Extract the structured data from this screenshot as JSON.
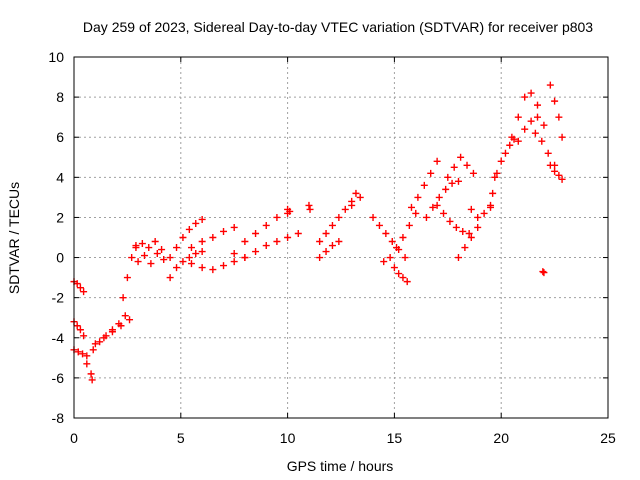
{
  "chart_data": {
    "type": "scatter",
    "title": "Day 259 of 2023, Sidereal Day-to-day VTEC variation (SDTVAR) for receiver p803",
    "xlabel": "GPS time / hours",
    "ylabel": "SDTVAR / TECUs",
    "xlim": [
      0,
      25
    ],
    "ylim": [
      -8,
      10
    ],
    "xticks": [
      0,
      5,
      10,
      15,
      20,
      25
    ],
    "yticks": [
      -8,
      -6,
      -4,
      -2,
      0,
      2,
      4,
      6,
      8,
      10
    ],
    "xtick_labels": [
      "0",
      "5",
      "10",
      "15",
      "20",
      "25"
    ],
    "ytick_labels": [
      "-8",
      "-6",
      "-4",
      "-2",
      "0",
      "2",
      "4",
      "6",
      "8",
      "10"
    ],
    "grid": true,
    "marker": "+",
    "color": "#ff0000",
    "series": [
      {
        "name": "s1",
        "x": [
          0.0,
          0.15,
          0.3,
          0.45
        ],
        "y": [
          -1.2,
          -1.3,
          -1.5,
          -1.7
        ]
      },
      {
        "name": "s2",
        "x": [
          0.0,
          0.15,
          0.3,
          0.45
        ],
        "y": [
          -3.2,
          -3.4,
          -3.6,
          -3.9
        ]
      },
      {
        "name": "s3",
        "x": [
          0.0,
          0.2,
          0.4,
          0.6
        ],
        "y": [
          -4.6,
          -4.7,
          -4.8,
          -4.9
        ]
      },
      {
        "name": "s4",
        "x": [
          0.6,
          0.9,
          1.2,
          1.5,
          1.8,
          2.1,
          2.4
        ],
        "y": [
          -5.3,
          -4.6,
          -4.2,
          -3.9,
          -3.6,
          -3.3,
          -2.9
        ]
      },
      {
        "name": "s5",
        "x": [
          0.8,
          0.85
        ],
        "y": [
          -5.8,
          -6.1
        ]
      },
      {
        "name": "s6",
        "x": [
          1.0,
          1.4,
          1.8,
          2.2,
          2.6
        ],
        "y": [
          -4.3,
          -4.0,
          -3.7,
          -3.4,
          -3.1
        ]
      },
      {
        "name": "s7",
        "x": [
          2.3,
          2.5,
          2.7,
          2.9
        ],
        "y": [
          -2.0,
          -1.0,
          0.0,
          0.5
        ]
      },
      {
        "name": "s8",
        "x": [
          2.9,
          3.2,
          3.5,
          3.8,
          4.1
        ],
        "y": [
          0.6,
          0.7,
          0.5,
          0.8,
          0.4
        ]
      },
      {
        "name": "s9",
        "x": [
          3.0,
          3.3,
          3.6,
          3.9,
          4.2
        ],
        "y": [
          -0.2,
          0.1,
          -0.3,
          0.2,
          -0.1
        ]
      },
      {
        "name": "s10",
        "x": [
          4.5,
          4.8,
          5.1,
          5.4,
          5.7,
          6.0
        ],
        "y": [
          0.0,
          0.5,
          1.0,
          1.4,
          1.7,
          1.9
        ]
      },
      {
        "name": "s11",
        "x": [
          4.5,
          4.8,
          5.1,
          5.4,
          5.7,
          6.0
        ],
        "y": [
          -1.0,
          -0.5,
          -0.2,
          0.0,
          0.2,
          0.3
        ]
      },
      {
        "name": "s12",
        "x": [
          5.5,
          6.0,
          6.5,
          7.0,
          7.5
        ],
        "y": [
          0.5,
          0.8,
          1.0,
          1.3,
          1.5
        ]
      },
      {
        "name": "s13",
        "x": [
          5.5,
          6.0,
          6.5,
          7.0,
          7.5,
          8.0
        ],
        "y": [
          -0.3,
          -0.5,
          -0.6,
          -0.4,
          -0.2,
          0.0
        ]
      },
      {
        "name": "s14",
        "x": [
          7.5,
          8.0,
          8.5,
          9.0,
          9.5,
          10.0
        ],
        "y": [
          0.2,
          0.8,
          1.2,
          1.6,
          2.0,
          2.2
        ]
      },
      {
        "name": "s15",
        "x": [
          8.0,
          8.5,
          9.0,
          9.5,
          10.0,
          10.5
        ],
        "y": [
          0.0,
          0.3,
          0.6,
          0.8,
          1.0,
          1.2
        ]
      },
      {
        "name": "s16",
        "x": [
          10.0,
          10.1
        ],
        "y": [
          2.4,
          2.3
        ]
      },
      {
        "name": "s17",
        "x": [
          11.0,
          11.05
        ],
        "y": [
          2.6,
          2.4
        ]
      },
      {
        "name": "s18",
        "x": [
          11.5,
          11.8,
          12.1,
          12.4,
          12.7,
          13.0
        ],
        "y": [
          0.8,
          1.2,
          1.6,
          2.0,
          2.4,
          2.8
        ]
      },
      {
        "name": "s19",
        "x": [
          11.5,
          11.8,
          12.1,
          12.4
        ],
        "y": [
          0.0,
          0.3,
          0.6,
          0.8
        ]
      },
      {
        "name": "s20",
        "x": [
          13.0,
          13.2,
          13.4
        ],
        "y": [
          2.6,
          3.2,
          3.0
        ]
      },
      {
        "name": "s21",
        "x": [
          14.0,
          14.3,
          14.6,
          14.9,
          15.2,
          15.5
        ],
        "y": [
          2.0,
          1.6,
          1.2,
          0.8,
          0.4,
          0.0
        ]
      },
      {
        "name": "s22",
        "x": [
          14.5,
          14.8,
          15.1,
          15.4,
          15.7,
          16.0
        ],
        "y": [
          -0.2,
          0.0,
          0.5,
          1.0,
          1.6,
          2.2
        ]
      },
      {
        "name": "s23",
        "x": [
          15.0,
          15.2,
          15.4,
          15.6
        ],
        "y": [
          -0.5,
          -0.8,
          -1.0,
          -1.2
        ]
      },
      {
        "name": "s24",
        "x": [
          15.8,
          16.1,
          16.4,
          16.7,
          17.0
        ],
        "y": [
          2.5,
          3.0,
          3.6,
          4.2,
          4.8
        ]
      },
      {
        "name": "s25",
        "x": [
          16.5,
          16.8,
          17.1,
          17.4,
          17.7,
          18.0
        ],
        "y": [
          2.0,
          2.5,
          3.0,
          3.4,
          3.7,
          3.8
        ]
      },
      {
        "name": "s26",
        "x": [
          17.0,
          17.3,
          17.6,
          17.9,
          18.2,
          18.5
        ],
        "y": [
          2.6,
          2.2,
          1.8,
          1.5,
          1.3,
          1.2
        ]
      },
      {
        "name": "s27",
        "x": [
          17.5,
          17.8,
          18.1,
          18.4,
          18.7
        ],
        "y": [
          4.0,
          4.5,
          5.0,
          4.6,
          4.2
        ]
      },
      {
        "name": "s28",
        "x": [
          18.0,
          18.3,
          18.6,
          18.9
        ],
        "y": [
          0.0,
          0.5,
          1.0,
          1.5
        ]
      },
      {
        "name": "s29",
        "x": [
          18.6,
          18.9,
          19.2,
          19.5
        ],
        "y": [
          2.4,
          2.0,
          2.2,
          2.6
        ]
      },
      {
        "name": "s30",
        "x": [
          19.5,
          19.6,
          19.7
        ],
        "y": [
          2.5,
          3.2,
          4.0
        ]
      },
      {
        "name": "s31",
        "x": [
          19.8,
          20.0,
          20.2,
          20.4,
          20.6
        ],
        "y": [
          4.2,
          4.8,
          5.2,
          5.6,
          5.9
        ]
      },
      {
        "name": "s32",
        "x": [
          20.5,
          20.8,
          21.1,
          21.4,
          21.7
        ],
        "y": [
          6.0,
          7.0,
          8.0,
          8.2,
          7.6
        ]
      },
      {
        "name": "s33",
        "x": [
          20.8,
          21.1,
          21.4,
          21.7,
          22.0
        ],
        "y": [
          5.8,
          6.4,
          6.8,
          7.0,
          6.6
        ]
      },
      {
        "name": "s34",
        "x": [
          21.6,
          21.9,
          22.2,
          22.5
        ],
        "y": [
          6.2,
          5.8,
          5.2,
          4.6
        ]
      },
      {
        "name": "s35",
        "x": [
          22.3,
          22.5,
          22.7,
          22.85
        ],
        "y": [
          8.6,
          7.8,
          7.0,
          6.0
        ]
      },
      {
        "name": "s36",
        "x": [
          22.3,
          22.5,
          22.7,
          22.85
        ],
        "y": [
          4.6,
          4.3,
          4.1,
          3.9
        ]
      },
      {
        "name": "s37",
        "x": [
          21.95,
          22.0
        ],
        "y": [
          -0.7,
          -0.75
        ]
      }
    ]
  }
}
